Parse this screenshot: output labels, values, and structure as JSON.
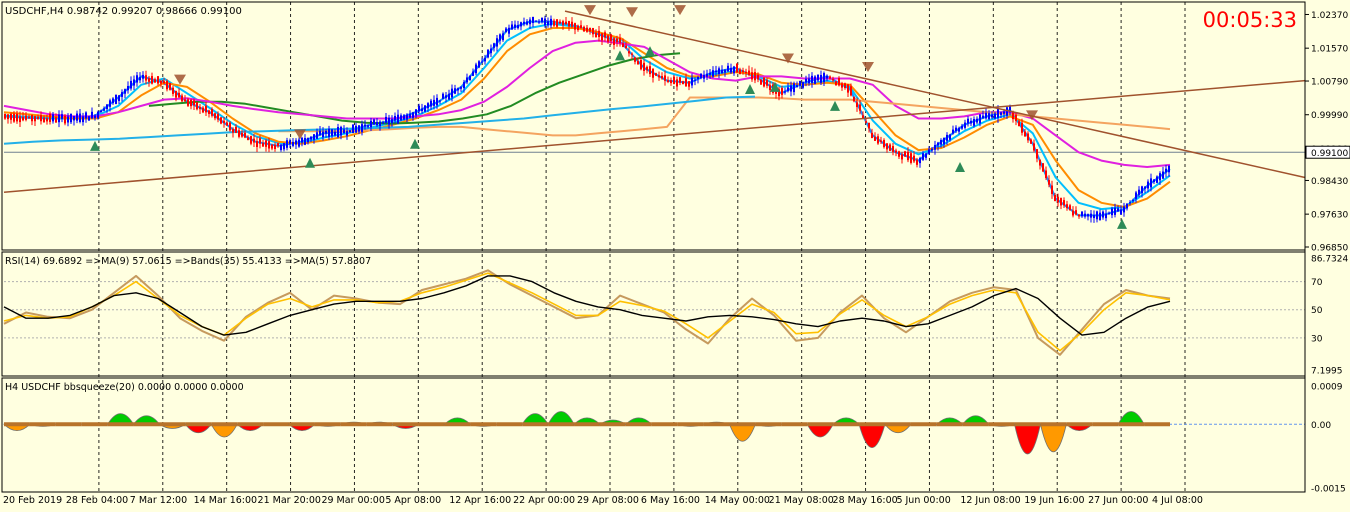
{
  "header": {
    "symbol_info": "USDCHF,H4  0.98742 0.99207 0.98666 0.99100",
    "countdown": "00:05:33"
  },
  "colors": {
    "background": "#ffffe0",
    "grid": "#000000",
    "bull_candle": "#0000ff",
    "bear_candle": "#ff0000",
    "ema_fast": "#1e90ff",
    "ema_mid": "#00bfff",
    "ema_orange": "#ff8c00",
    "ema_darkgreen": "#228b22",
    "ma_magenta": "#e020e0",
    "ma_peach": "#f4a460",
    "ma_cyan": "#22b0e8",
    "trendline": "#a0522d",
    "rsi_line": "#ffc000",
    "rsi_bands": "#000000",
    "squeeze_up": "#00cc00",
    "squeeze_down": "#ff0000",
    "squeeze_orange": "#ff9900",
    "countdown": "#ff0000"
  },
  "chart_data": [
    {
      "type": "line",
      "panel": "price",
      "title": "USDCHF,H4",
      "ohlc": {
        "open": 0.98742,
        "high": 0.99207,
        "low": 0.98666,
        "close": 0.991
      },
      "ylim": [
        0.9685,
        1.025
      ],
      "y_ticks": [
        "1.02370",
        "1.01570",
        "1.00790",
        "0.99990",
        "0.99190",
        "0.98430",
        "0.97630",
        "0.96850"
      ],
      "current_price_label": "0.99100",
      "x_labels": [
        "20 Feb 2019",
        "28 Feb 04:00",
        "7 Mar 12:00",
        "14 Mar 16:00",
        "21 Mar 20:00",
        "29 Mar 00:00",
        "5 Apr 08:00",
        "12 Apr 16:00",
        "22 Apr 00:00",
        "29 Apr 08:00",
        "6 May 16:00",
        "14 May 00:00",
        "21 May 08:00",
        "28 May 16:00",
        "5 Jun 00:00",
        "12 Jun 08:00",
        "19 Jun 16:00",
        "27 Jun 00:00",
        "4 Jul 08:00"
      ],
      "series": [
        {
          "values": [
            0.9995,
            0.9992,
            0.999,
            0.999,
            0.9997,
            1.004,
            1.009,
            1.0075,
            1.003,
            1.0005,
            0.9965,
            0.9935,
            0.9925,
            0.9935,
            0.9955,
            0.996,
            0.9975,
            0.9985,
            1.0005,
            1.003,
            1.0065,
            1.013,
            1.02,
            1.022,
            1.022,
            1.021,
            1.019,
            1.017,
            1.011,
            1.008,
            1.0075,
            1.01,
            1.011,
            1.0085,
            1.005,
            1.0075,
            1.009,
            1.006,
            0.995,
            0.991,
            0.989,
            0.9935,
            0.9975,
            0.9995,
            1.001,
            0.993,
            0.98,
            0.976,
            0.976,
            0.9775,
            0.983,
            0.987
          ]
        },
        {
          "values": [
            0.9997,
            0.9994,
            0.9992,
            0.999,
            0.9995,
            1.002,
            1.007,
            1.0085,
            1.005,
            1.0015,
            0.9978,
            0.9948,
            0.9932,
            0.9932,
            0.9945,
            0.9955,
            0.9968,
            0.998,
            0.9995,
            1.002,
            1.005,
            1.011,
            1.0175,
            1.0205,
            1.0215,
            1.0208,
            1.0195,
            1.0178,
            1.013,
            1.01,
            1.0085,
            1.0095,
            1.0102,
            1.009,
            1.0065,
            1.007,
            1.008,
            1.0065,
            0.9985,
            0.993,
            0.9905,
            0.9925,
            0.996,
            0.9985,
            1.0,
            0.9955,
            0.985,
            0.979,
            0.9775,
            0.978,
            0.9815,
            0.9855
          ]
        },
        {
          "values": [
            1.0005,
            1.0,
            0.9995,
            0.999,
            0.999,
            1.0005,
            1.0045,
            1.0075,
            1.0065,
            1.003,
            0.999,
            0.9955,
            0.9935,
            0.993,
            0.9938,
            0.9948,
            0.9962,
            0.9975,
            0.999,
            1.001,
            1.0035,
            1.0085,
            1.015,
            1.019,
            1.0205,
            1.0205,
            1.0195,
            1.018,
            1.0145,
            1.011,
            1.009,
            1.009,
            1.01,
            1.0095,
            1.0075,
            1.007,
            1.0075,
            1.007,
            1.001,
            0.995,
            0.9915,
            0.992,
            0.9945,
            0.9975,
            0.9995,
            0.9975,
            0.989,
            0.982,
            0.979,
            0.978,
            0.98,
            0.984
          ]
        },
        {
          "values": [
            null,
            null,
            null,
            null,
            null,
            null,
            1.002,
            1.0025,
            1.003,
            1.003,
            1.0025,
            1.0015,
            1.0005,
            0.9995,
            0.9985,
            0.998,
            0.9978,
            0.998,
            0.9983,
            0.999,
            1.0,
            1.002,
            1.005,
            1.0075,
            1.0095,
            1.0115,
            1.013,
            1.014,
            1.0145
          ]
        },
        {
          "values": [
            1.002,
            1.001,
            1.0,
            0.9995,
            0.9995,
            1.0005,
            1.002,
            1.0035,
            1.0038,
            1.003,
            1.002,
            1.0012,
            1.0005,
            1.0,
            0.9995,
            0.999,
            0.999,
            0.999,
            0.9995,
            1.0,
            1.001,
            1.003,
            1.0065,
            1.011,
            1.015,
            1.017,
            1.0175,
            1.0168,
            1.016,
            1.013,
            1.01,
            1.0085,
            1.008,
            1.009,
            1.009,
            1.0085,
            1.0085,
            1.0085,
            1.007,
            1.002,
            0.999,
            0.999,
            0.9995,
            1.0005,
            1.0005,
            0.999,
            0.995,
            0.991,
            0.989,
            0.988,
            0.9875,
            0.988
          ]
        },
        {
          "values": [
            null,
            null,
            null,
            null,
            null,
            null,
            null,
            null,
            null,
            null,
            null,
            null,
            0.996,
            0.996,
            0.996,
            0.996,
            0.9962,
            0.9965,
            0.9968,
            0.997,
            0.997,
            0.9965,
            0.996,
            0.9955,
            0.995,
            0.995,
            0.9955,
            0.996,
            0.9965,
            0.997,
            1.004,
            1.004,
            1.004,
            1.004,
            1.0038,
            1.0035,
            1.0035,
            1.0035,
            1.003,
            1.0025,
            1.002,
            1.0015,
            1.001,
            1.0005,
            1.0,
            0.9995,
            0.999,
            0.9985,
            0.998,
            0.9975,
            0.997,
            0.9965
          ]
        },
        {
          "values": [
            0.993,
            0.9935,
            0.9938,
            0.994,
            0.9942,
            0.9946,
            0.995,
            0.9954,
            0.9958,
            0.996,
            0.9962,
            0.9964,
            0.9966,
            0.9968,
            0.997,
            0.9975,
            0.998,
            0.9985,
            0.999,
            0.9998,
            1.0005,
            1.0012,
            1.0018,
            1.0025,
            1.0032,
            1.004,
            1.0042
          ]
        }
      ]
    },
    {
      "type": "line",
      "panel": "rsi",
      "title": "RSI(14) 69.6892  =>MA(9) 57.0615  =>Bands(35) 55.4133  =>MA(5) 57.8307",
      "ylim": [
        7.1995,
        86.7324
      ],
      "y_ticks": [
        "86.7324",
        "70",
        "50",
        "30",
        "7.1995"
      ],
      "series": [
        {
          "values": [
            40,
            48,
            45,
            44,
            50,
            62,
            74,
            60,
            44,
            35,
            28,
            45,
            55,
            62,
            50,
            60,
            58,
            55,
            54,
            64,
            68,
            72,
            78,
            68,
            60,
            52,
            44,
            46,
            60,
            54,
            48,
            36,
            26,
            44,
            58,
            46,
            28,
            30,
            48,
            60,
            44,
            34,
            45,
            56,
            62,
            66,
            64,
            30,
            18,
            36,
            54,
            64,
            60,
            58
          ]
        },
        {
          "values": [
            42,
            46,
            44,
            45,
            52,
            60,
            70,
            58,
            46,
            38,
            32,
            44,
            54,
            58,
            52,
            57,
            57,
            55,
            56,
            62,
            66,
            71,
            76,
            69,
            62,
            54,
            46,
            46,
            56,
            53,
            49,
            40,
            30,
            42,
            54,
            48,
            33,
            34,
            47,
            57,
            46,
            38,
            45,
            54,
            60,
            64,
            62,
            34,
            21,
            34,
            50,
            62,
            60,
            57
          ]
        },
        {
          "values": [
            52,
            44,
            44,
            46,
            52,
            60,
            62,
            58,
            48,
            38,
            32,
            34,
            40,
            46,
            50,
            54,
            56,
            56,
            56,
            58,
            62,
            67,
            74,
            74,
            70,
            62,
            56,
            52,
            50,
            46,
            44,
            42,
            45,
            46,
            45,
            43,
            40,
            38,
            42,
            44,
            42,
            38,
            40,
            46,
            52,
            60,
            65,
            58,
            44,
            32,
            34,
            44,
            52,
            56
          ]
        }
      ]
    },
    {
      "type": "bar",
      "panel": "squeeze",
      "title": "H4 USDCHF bbsqueeze(20) 0.0000 0.0000 0.0000",
      "ylim": [
        -0.0015,
        0.0009
      ],
      "y_ticks": [
        "0.0009",
        "0.00",
        "-0.0015"
      ],
      "values": [
        -0.0003,
        -0.0001,
        0.0,
        0.0,
        0.0005,
        0.0004,
        -0.0002,
        -0.0004,
        -0.0006,
        -0.0003,
        0.0,
        -0.0003,
        -0.0001,
        0.0001,
        0.0001,
        -0.0002,
        0.0,
        0.0003,
        -0.0001,
        0.0,
        0.0005,
        0.0006,
        0.0003,
        0.0002,
        0.0003,
        0.0,
        -0.0001,
        0.0001,
        -0.0008,
        -0.0001,
        0.0,
        -0.0006,
        0.0003,
        -0.0011,
        -0.0004,
        0.0,
        0.0003,
        0.0004,
        -0.0001,
        -0.0014,
        -0.0013,
        -0.0003,
        0.0,
        0.0006,
        0.0
      ]
    }
  ]
}
